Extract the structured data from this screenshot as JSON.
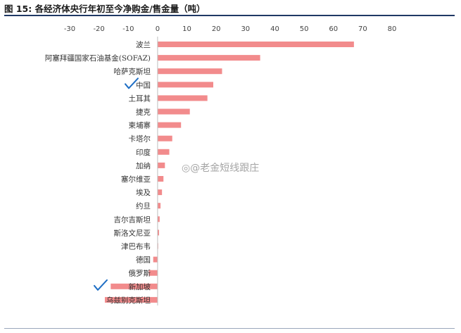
{
  "figure": {
    "title": "图 15: 各经济体央行年初至今净购金/售金量（吨）",
    "watermark": "@老金短线跟庄"
  },
  "chart_data": {
    "type": "bar",
    "orientation": "horizontal",
    "title": "图 15: 各经济体央行年初至今净购金/售金量（吨）",
    "xlim": [
      -30,
      80
    ],
    "xticks": [
      -30,
      -20,
      -10,
      0,
      10,
      20,
      30,
      40,
      50,
      60,
      70,
      80
    ],
    "x_axis_position": "top",
    "grid": false,
    "bar_color": "#f28b8c",
    "categories": [
      "波兰",
      "阿塞拜疆国家石油基金(SOFAZ)",
      "哈萨克斯坦",
      "中国",
      "土耳其",
      "捷克",
      "柬埔寨",
      "卡塔尔",
      "印度",
      "加纳",
      "塞尔维亚",
      "埃及",
      "约旦",
      "吉尔吉斯坦",
      "斯洛文尼亚",
      "津巴布韦",
      "德国",
      "俄罗斯",
      "新加坡",
      "乌兹别克斯坦"
    ],
    "values": [
      67,
      35,
      22,
      19,
      17,
      11,
      8,
      5,
      4,
      2.5,
      2,
      1.5,
      1,
      0.7,
      0.5,
      0.2,
      -1.5,
      -3,
      -16,
      -18
    ],
    "checkmark_color": "#1f6fc5"
  }
}
